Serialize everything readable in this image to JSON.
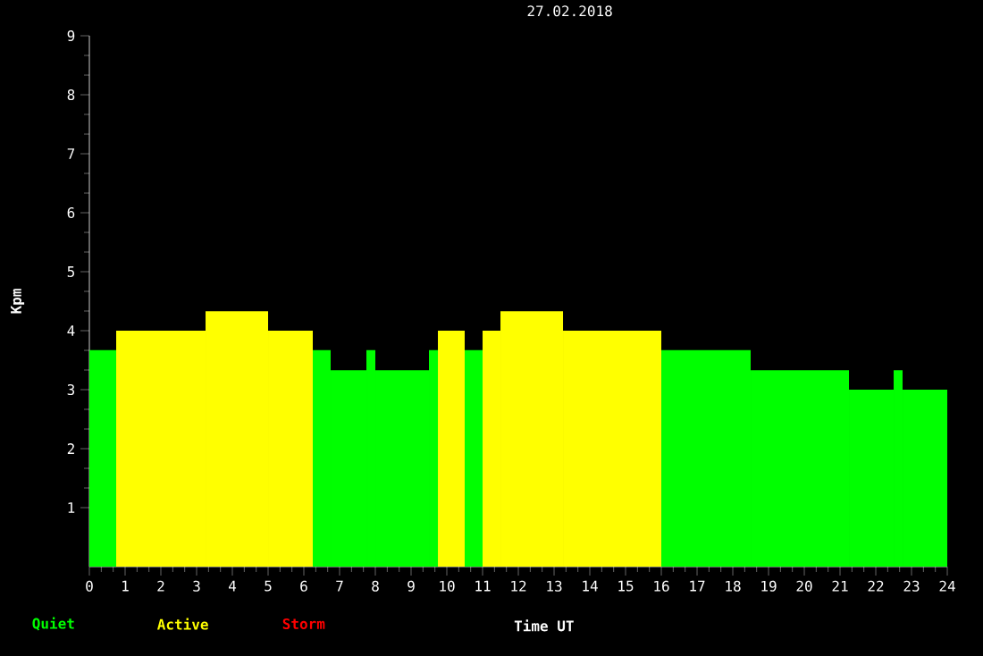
{
  "chart_data": {
    "type": "histogram",
    "title": "27.02.2018",
    "xlabel": "Time UT",
    "ylabel": "Kpm",
    "bins": [
      0,
      0.75,
      3.25,
      5,
      6.25,
      6.75,
      7.75,
      8,
      9.5,
      9.75,
      10.5,
      11,
      11.5,
      13.25,
      16,
      18.5,
      21.25,
      22.5,
      22.75,
      24
    ],
    "series": [
      {
        "name": "Quiet",
        "color": "#00ff00",
        "values": [
          3.67,
          null,
          null,
          null,
          3.67,
          3.33,
          3.67,
          3.33,
          3.67,
          null,
          3.67,
          null,
          null,
          null,
          3.67,
          3.33,
          3,
          3.33,
          3
        ]
      },
      {
        "name": "Active",
        "color": "#ffff00",
        "values": [
          null,
          4,
          4.33,
          4,
          null,
          null,
          null,
          null,
          null,
          4,
          null,
          4,
          4.33,
          4,
          null,
          null,
          null,
          null,
          null
        ]
      }
    ],
    "annotations": [
      "Storm"
    ],
    "xlim": [
      0,
      24
    ],
    "ylim": [
      0,
      9
    ],
    "xticks": [
      0,
      1,
      2,
      3,
      4,
      5,
      6,
      7,
      8,
      9,
      10,
      11,
      12,
      13,
      14,
      15,
      16,
      17,
      18,
      19,
      20,
      21,
      22,
      23,
      24
    ],
    "yticks": [
      1,
      2,
      3,
      4,
      5,
      6,
      7,
      8,
      9
    ],
    "legend": "bottom"
  }
}
